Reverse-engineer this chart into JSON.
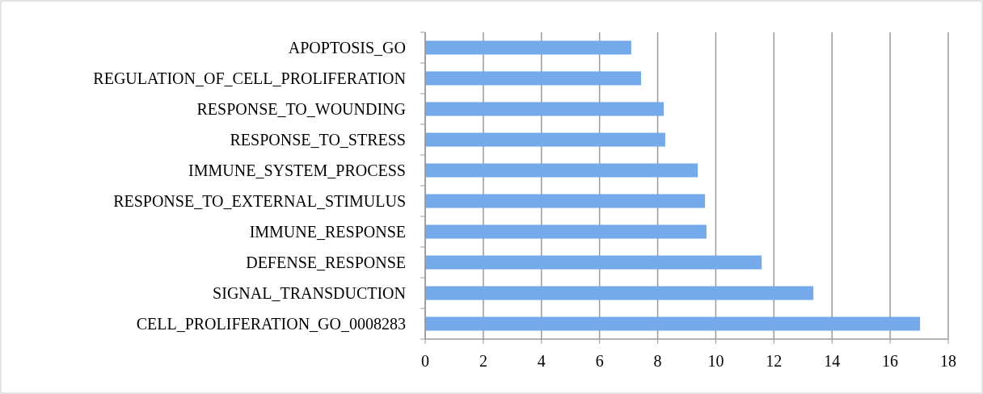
{
  "chart_data": {
    "type": "bar",
    "orientation": "horizontal",
    "categories": [
      "APOPTOSIS_GO",
      "REGULATION_OF_CELL_PROLIFERATION",
      "RESPONSE_TO_WOUNDING",
      "RESPONSE_TO_STRESS",
      "IMMUNE_SYSTEM_PROCESS",
      "RESPONSE_TO_EXTERNAL_STIMULUS",
      "IMMUNE_RESPONSE",
      "DEFENSE_RESPONSE",
      "SIGNAL_TRANSDUCTION",
      "CELL_PROLIFERATION_GO_0008283"
    ],
    "values": [
      7.09,
      7.43,
      8.21,
      8.26,
      9.38,
      9.63,
      9.68,
      11.58,
      13.36,
      17.03
    ],
    "color": "#74a9ea",
    "xlim": [
      0,
      18
    ],
    "xticks": [
      0,
      2,
      4,
      6,
      8,
      10,
      12,
      14,
      16,
      18
    ],
    "grid": "x"
  }
}
